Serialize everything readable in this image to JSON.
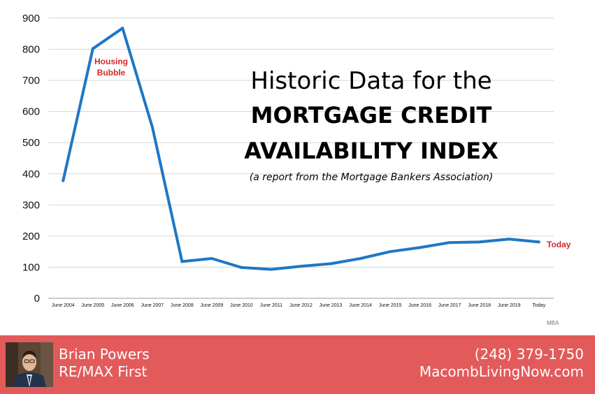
{
  "chart_data": {
    "type": "line",
    "title_lines": [
      "Historic Data for the",
      "MORTGAGE CREDIT",
      "AVAILABILITY INDEX"
    ],
    "subtitle": "(a report from the Mortgage Bankers Association)",
    "categories": [
      "June 2004",
      "June 2005",
      "June 2006",
      "June 2007",
      "June 2008",
      "June 2009",
      "June 2010",
      "June 2011",
      "June 2012",
      "June 2013",
      "June 2014",
      "June 2015",
      "June 2016",
      "June 2017",
      "June 2018",
      "June 2019",
      "Today"
    ],
    "series": [
      {
        "values": [
          378,
          802,
          868,
          550,
          118,
          128,
          99,
          93,
          103,
          111,
          128,
          150,
          163,
          179,
          181,
          190,
          181
        ]
      }
    ],
    "y_ticks": [
      0,
      100,
      200,
      300,
      400,
      500,
      600,
      700,
      800,
      900
    ],
    "ylim": [
      0,
      900
    ],
    "grid": true,
    "annotations": [
      {
        "text": "Housing Bubble",
        "category": "June 2006"
      },
      {
        "text": "Today",
        "category": "Today"
      }
    ],
    "source": "MBA",
    "line_color": "#1f77c4",
    "annotation_color": "#d9252a"
  },
  "footer": {
    "agent_name": "Brian Powers",
    "agent_company": "RE/MAX First",
    "phone": "(248) 379-1750",
    "website": "MacombLivingNow.com",
    "background_color": "#e35a5a"
  }
}
